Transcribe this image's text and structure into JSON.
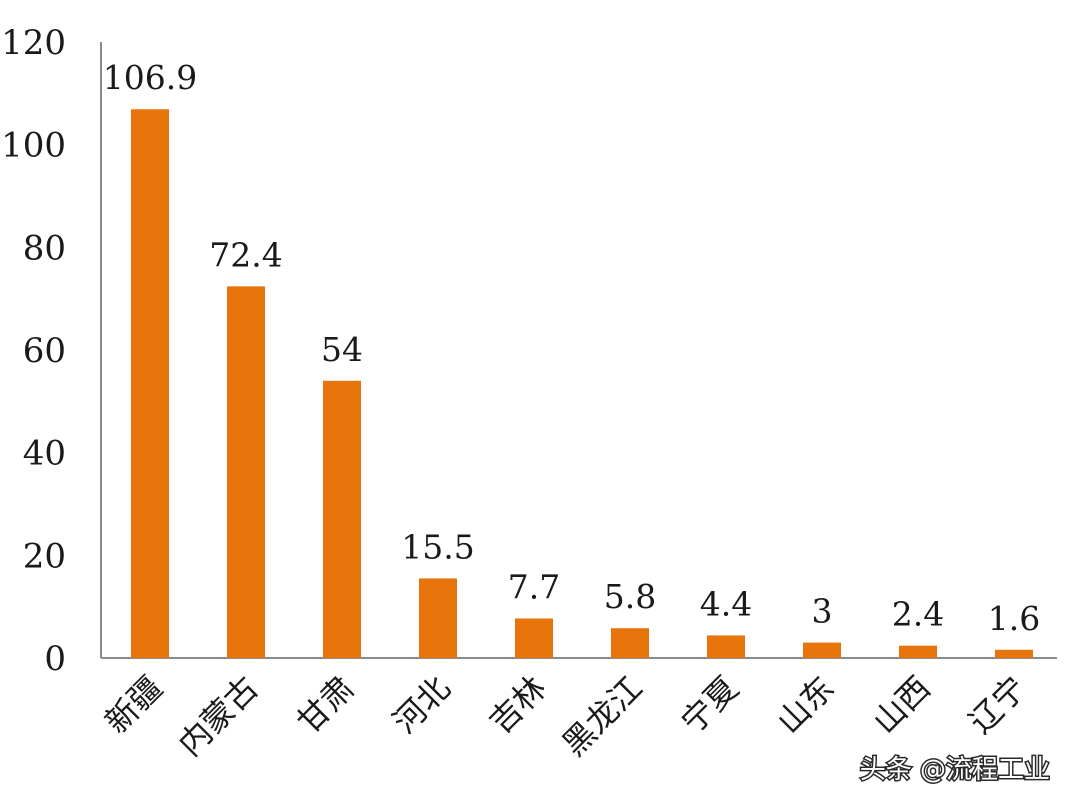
{
  "chart_data": {
    "type": "bar",
    "categories": [
      "新疆",
      "内蒙古",
      "甘肃",
      "河北",
      "吉林",
      "黑龙江",
      "宁夏",
      "山东",
      "山西",
      "辽宁"
    ],
    "values": [
      106.9,
      72.4,
      54,
      15.5,
      7.7,
      5.8,
      4.4,
      3,
      2.4,
      1.6
    ],
    "data_labels": [
      "106.9",
      "72.4",
      "54",
      "15.5",
      "7.7",
      "5.8",
      "4.4",
      "3",
      "2.4",
      "1.6"
    ],
    "title": "",
    "xlabel": "",
    "ylabel": "",
    "ylim": [
      0,
      120
    ],
    "yticks": [
      0,
      20,
      40,
      60,
      80,
      100,
      120
    ],
    "ytick_labels": [
      "0",
      "20",
      "40",
      "60",
      "80",
      "100",
      "120"
    ],
    "grid": false,
    "legend": "none",
    "bar_color": "#e8740c",
    "axis_color": "#8c8c8c"
  },
  "watermark": {
    "text": "头条 @流程工业"
  }
}
